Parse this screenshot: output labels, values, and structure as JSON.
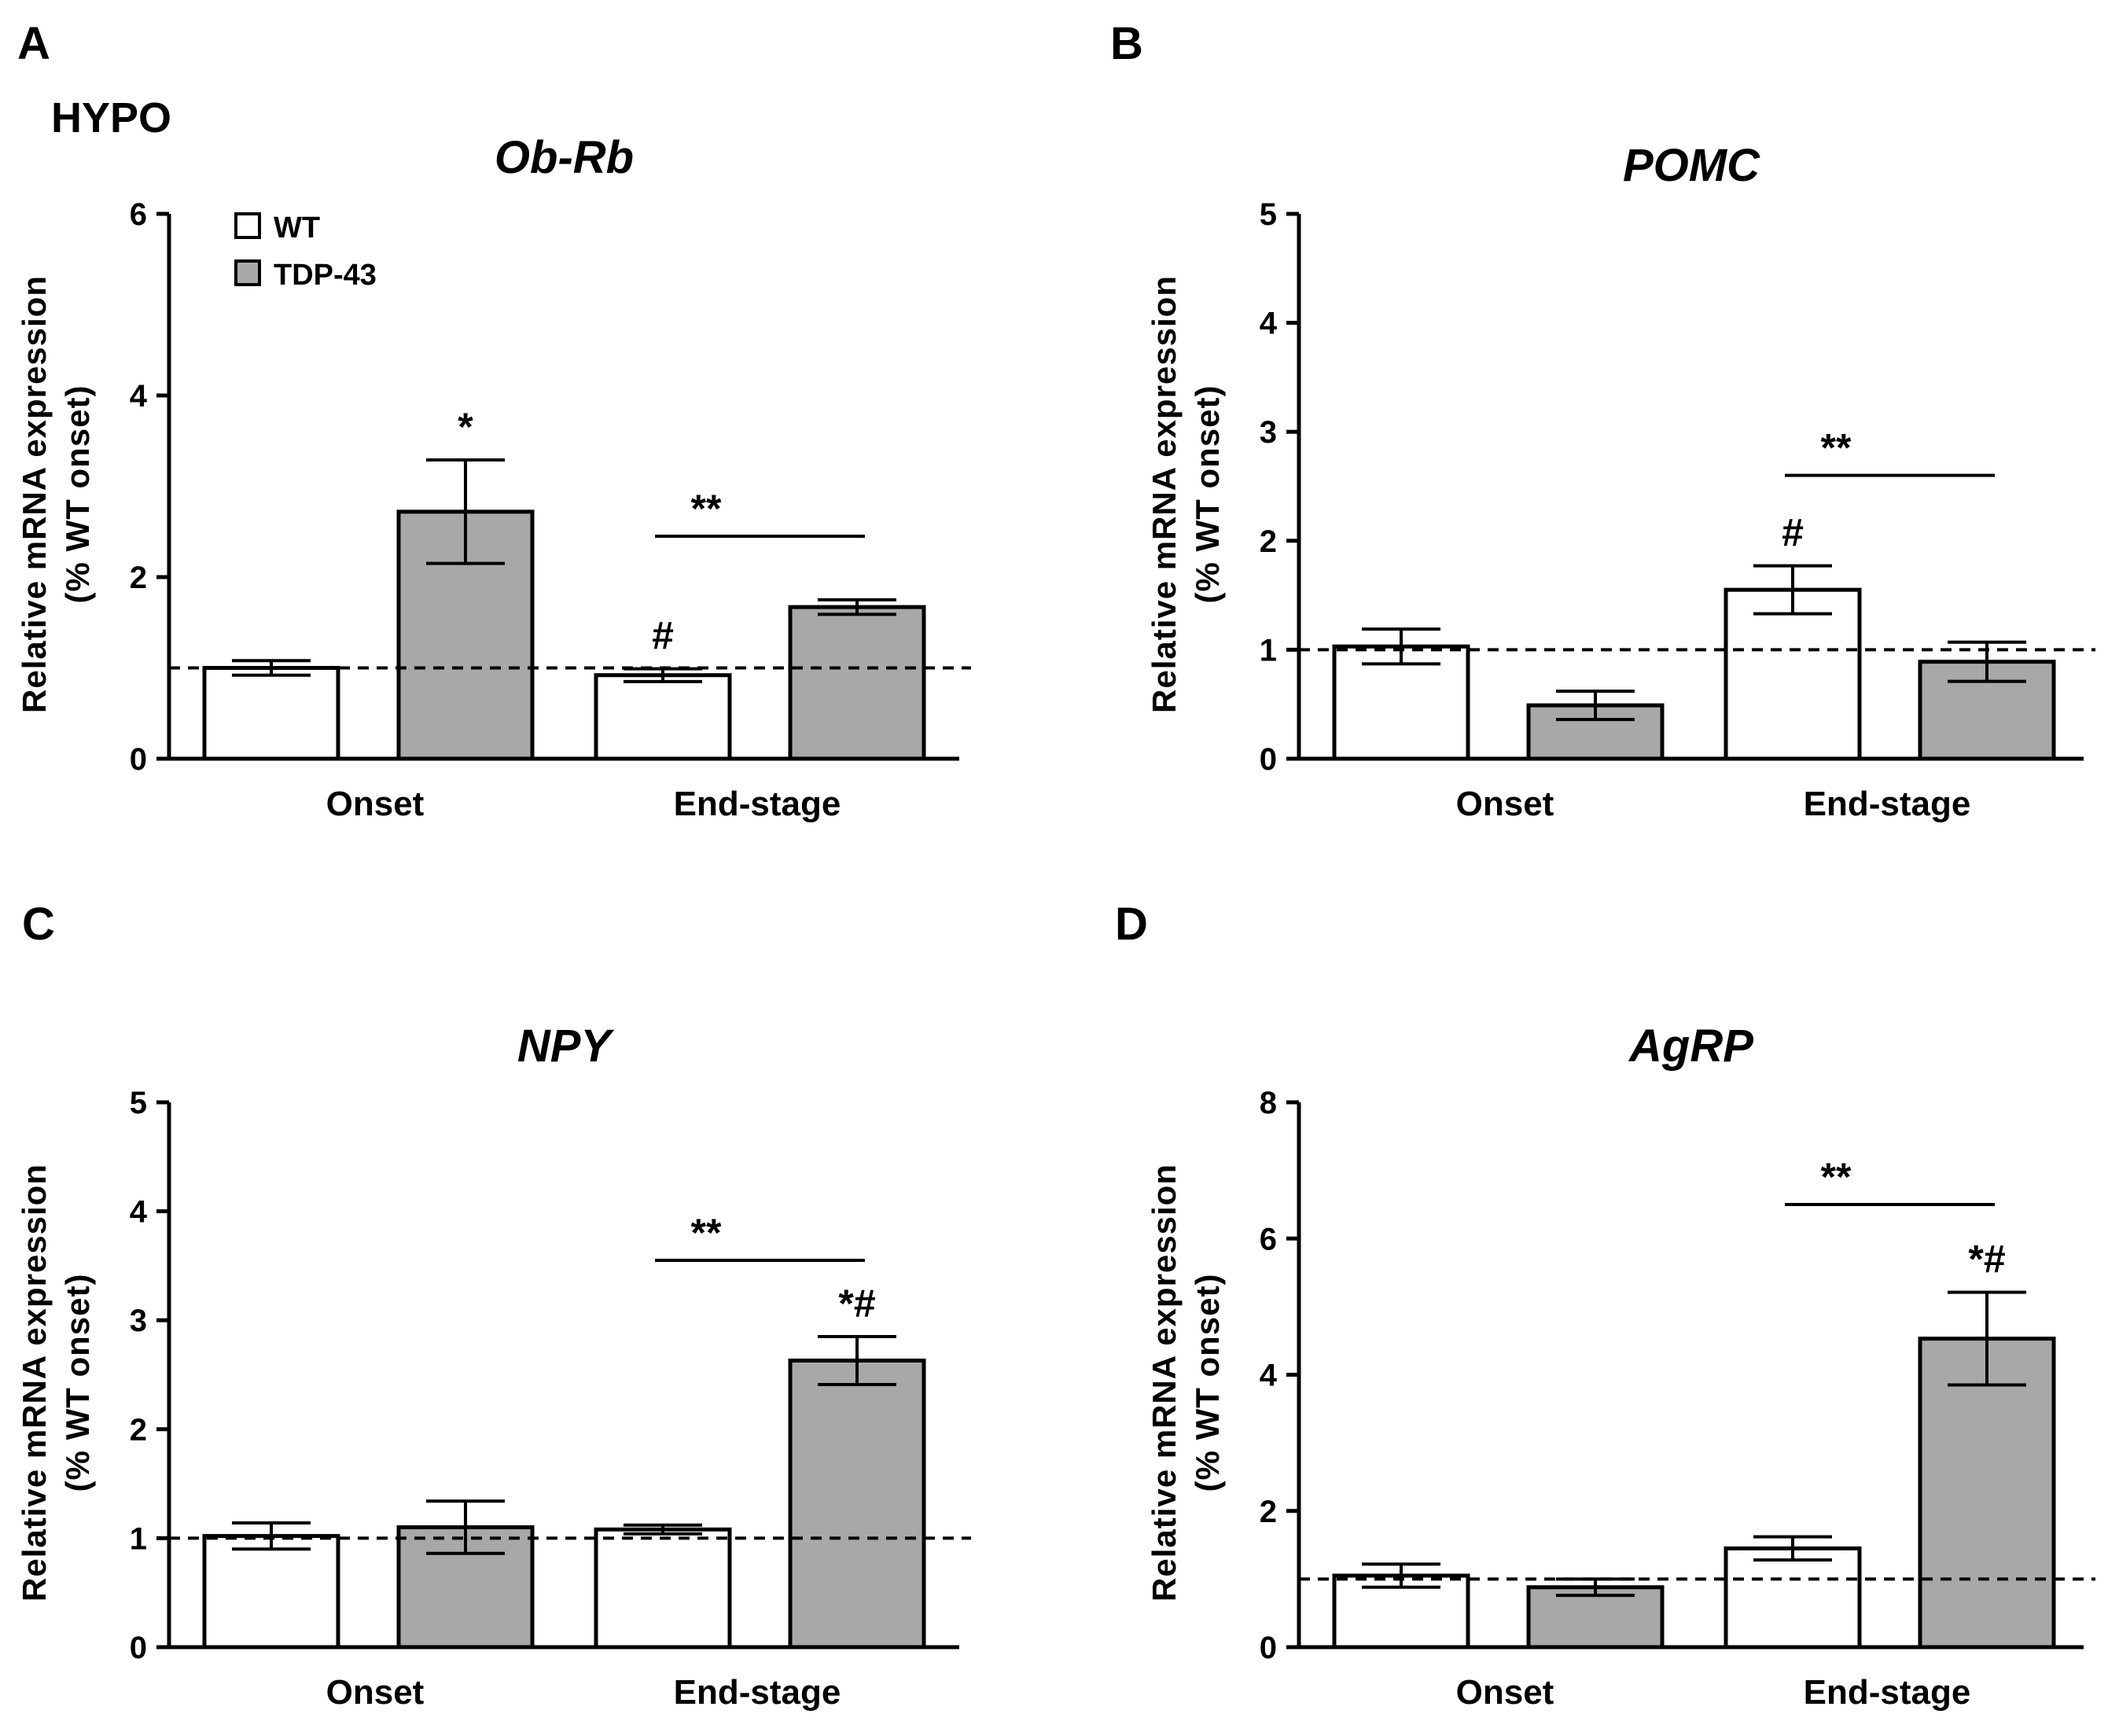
{
  "figure": {
    "region_label": "HYPO",
    "legend": [
      {
        "label": "WT",
        "color": "#ffffff"
      },
      {
        "label": "TDP-43",
        "color": "#a8a8a8"
      }
    ]
  },
  "chart_data": [
    {
      "panel": "A",
      "type": "bar",
      "title": "Ob-Rb",
      "ylabel": "Relative mRNA expression",
      "ylabel2": "(% WT onset)",
      "categories": [
        "Onset",
        "End-stage"
      ],
      "ylim": [
        0,
        6
      ],
      "yticks": [
        0,
        2,
        4,
        6
      ],
      "reference_line": 1,
      "series": [
        {
          "name": "WT",
          "color": "#ffffff",
          "values": [
            1.0,
            0.92
          ],
          "errors": [
            0.08,
            0.07
          ]
        },
        {
          "name": "TDP-43",
          "color": "#a8a8a8",
          "values": [
            2.72,
            1.67
          ],
          "errors": [
            0.57,
            0.08
          ]
        }
      ],
      "annotations": [
        {
          "text": "*",
          "category": 0,
          "series": 1
        },
        {
          "text": "#",
          "category": 1,
          "series": 0
        }
      ],
      "brackets": [
        {
          "text": "**",
          "category": 1,
          "y": 2.45
        }
      ]
    },
    {
      "panel": "B",
      "type": "bar",
      "title": "POMC",
      "ylabel": "Relative mRNA expression",
      "ylabel2": "(% WT onset)",
      "categories": [
        "Onset",
        "End-stage"
      ],
      "ylim": [
        0,
        5
      ],
      "yticks": [
        0,
        1,
        2,
        3,
        4,
        5
      ],
      "reference_line": 1,
      "series": [
        {
          "name": "WT",
          "color": "#ffffff",
          "values": [
            1.03,
            1.55
          ],
          "errors": [
            0.16,
            0.22
          ]
        },
        {
          "name": "TDP-43",
          "color": "#a8a8a8",
          "values": [
            0.49,
            0.89
          ],
          "errors": [
            0.13,
            0.18
          ]
        }
      ],
      "annotations": [
        {
          "text": "#",
          "category": 1,
          "series": 0
        }
      ],
      "brackets": [
        {
          "text": "**",
          "category": 1,
          "y": 2.6
        }
      ]
    },
    {
      "panel": "C",
      "type": "bar",
      "title": "NPY",
      "ylabel": "Relative mRNA expression",
      "ylabel2": "(% WT onset)",
      "categories": [
        "Onset",
        "End-stage"
      ],
      "ylim": [
        0,
        5
      ],
      "yticks": [
        0,
        1,
        2,
        3,
        4,
        5
      ],
      "reference_line": 1,
      "series": [
        {
          "name": "WT",
          "color": "#ffffff",
          "values": [
            1.02,
            1.08
          ],
          "errors": [
            0.12,
            0.04
          ]
        },
        {
          "name": "TDP-43",
          "color": "#a8a8a8",
          "values": [
            1.1,
            2.63
          ],
          "errors": [
            0.24,
            0.22
          ]
        }
      ],
      "annotations": [
        {
          "text": "*#",
          "category": 1,
          "series": 1
        }
      ],
      "brackets": [
        {
          "text": "**",
          "category": 1,
          "y": 3.55
        }
      ]
    },
    {
      "panel": "D",
      "type": "bar",
      "title": "AgRP",
      "ylabel": "Relative mRNA expression",
      "ylabel2": "(% WT onset)",
      "categories": [
        "Onset",
        "End-stage"
      ],
      "ylim": [
        0,
        8
      ],
      "yticks": [
        0,
        2,
        4,
        6,
        8
      ],
      "reference_line": 1,
      "series": [
        {
          "name": "WT",
          "color": "#ffffff",
          "values": [
            1.05,
            1.45
          ],
          "errors": [
            0.17,
            0.17
          ]
        },
        {
          "name": "TDP-43",
          "color": "#a8a8a8",
          "values": [
            0.88,
            4.53
          ],
          "errors": [
            0.12,
            0.68
          ]
        }
      ],
      "annotations": [
        {
          "text": "*#",
          "category": 1,
          "series": 1
        }
      ],
      "brackets": [
        {
          "text": "**",
          "category": 1,
          "y": 6.5
        }
      ]
    }
  ]
}
